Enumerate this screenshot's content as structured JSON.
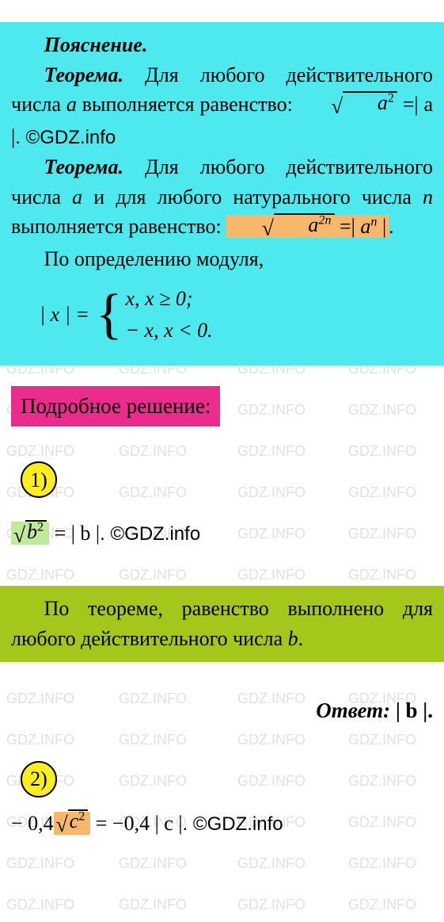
{
  "watermark_text": "GDZ.INFO",
  "watermark_color": "rgba(120,120,120,0.22)",
  "watermark_fontsize": 18,
  "colors": {
    "cyan_box": "#4de9ef",
    "orange_hl": "#f8b86c",
    "pink_hl": "#ec2c8c",
    "yellow_circle": "#fbee1f",
    "green_hl": "#c1e99a",
    "olive_box": "#a3c81b"
  },
  "explanation": {
    "heading": "Пояснение.",
    "theorem1_label": "Теорема.",
    "theorem1_text_a": " Для любого действительного числа ",
    "theorem1_var": "a",
    "theorem1_text_b": " выполняется равенство: ",
    "theorem1_formula_lhs_radicand": "a",
    "theorem1_formula_lhs_exp": "2",
    "theorem1_formula_rhs": "| a |",
    "theorem1_copyright": ". ©GDZ.info",
    "theorem2_label": "Теорема.",
    "theorem2_text_a": " Для любого действительного числа ",
    "theorem2_var_a": "a",
    "theorem2_text_b": " и для любого натурального числа ",
    "theorem2_var_n": "n",
    "theorem2_text_c": " выполняется равенство: ",
    "theorem2_formula_lhs_radicand": "a",
    "theorem2_formula_lhs_exp": "2n",
    "theorem2_formula_rhs_base": "a",
    "theorem2_formula_rhs_exp": "n",
    "modulus_intro": "По определению модуля,",
    "modulus_lhs": "| x | =",
    "modulus_case1": "x,    x ≥ 0;",
    "modulus_case2": "− x,  x < 0."
  },
  "detailed_heading": "Подробное решение:",
  "step1": {
    "number": "1)",
    "formula_radicand": "b",
    "formula_exp": "2",
    "formula_rhs": "= | b |",
    "copyright": ". ©GDZ.info",
    "note": "По теореме, равенство выполнено для любого действительного числа ",
    "note_var": "b",
    "note_end": ".",
    "answer_label": "Ответ:",
    "answer_value": " | b |."
  },
  "step2": {
    "number": "2)",
    "coef": "− 0,4",
    "formula_radicand": "c",
    "formula_exp": "2",
    "rhs": " = −0,4 | c |",
    "copyright": ". ©GDZ.info"
  }
}
